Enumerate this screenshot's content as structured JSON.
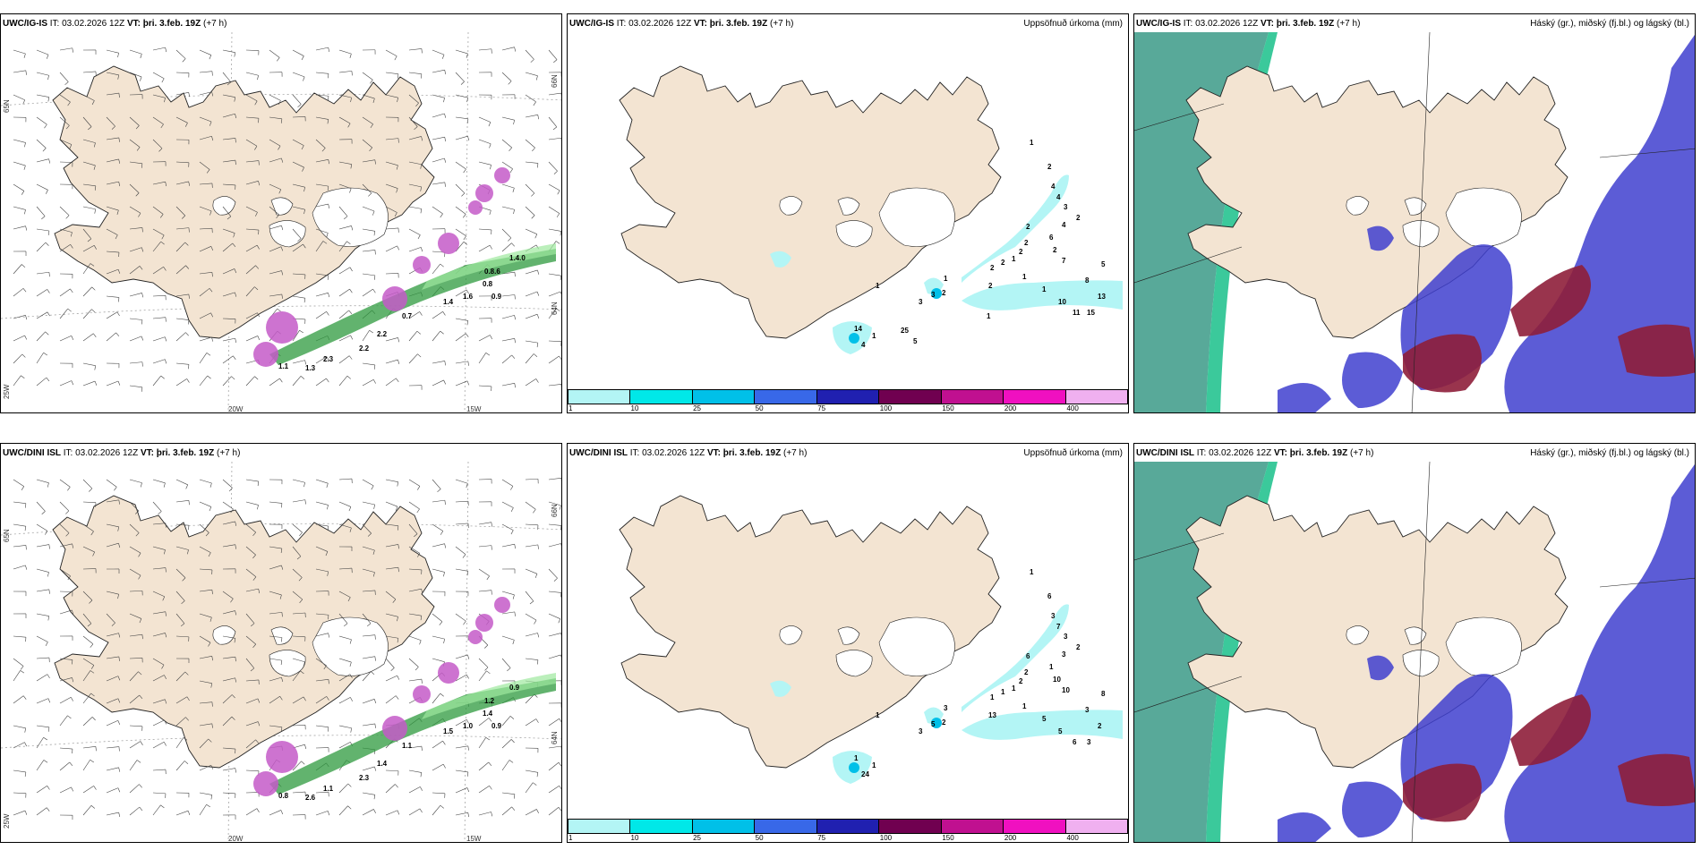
{
  "rows": [
    {
      "model": "UWC/IG-IS",
      "it_label": "IT:",
      "it": "03.02.2026 12Z",
      "vt_label": "VT:",
      "vt": "þri. 3.feb. 19Z",
      "lead": "(+7 h)",
      "wind_axes": {
        "lat_top": "66N",
        "lat_mid": "64N",
        "lat_left": "65N",
        "lat_bottom": "25W",
        "lon1": "20W",
        "lon2": "15W"
      },
      "wind_values": [
        "1.4.0",
        "0.8.6",
        "0.8",
        "1.6",
        "0.9",
        "1.4",
        "0.7",
        "2.2",
        "2.2",
        "1.3",
        "1.1",
        "2.3"
      ],
      "precip_values": [
        "1",
        "2",
        "4",
        "4",
        "3",
        "2",
        "4",
        "6",
        "2",
        "7",
        "2",
        "2",
        "2",
        "1",
        "2",
        "2",
        "1",
        "1",
        "10",
        "11",
        "15",
        "13",
        "8",
        "5",
        "2",
        "1",
        "2",
        "3",
        "3",
        "1",
        "14",
        "4",
        "1",
        "25",
        "5",
        "1"
      ],
      "cloud_title": "Háský (gr.), miðský (fj.bl.) og lágský (bl.)"
    },
    {
      "model": "UWC/DINI ISL",
      "it_label": "IT:",
      "it": "03.02.2026 12Z",
      "vt_label": "VT:",
      "vt": "þri. 3.feb. 19Z",
      "lead": "(+7 h)",
      "wind_axes": {
        "lat_top": "66N",
        "lat_mid": "64N",
        "lat_left": "65N",
        "lat_bottom": "25W",
        "lon1": "20W",
        "lon2": "15W"
      },
      "wind_values": [
        "0.9",
        "1.2",
        "1.4",
        "1.0",
        "0.9",
        "1.5",
        "1.1",
        "1.4",
        "2.3",
        "2.6",
        "0.8",
        "1.1"
      ],
      "precip_values": [
        "1",
        "6",
        "3",
        "7",
        "3",
        "2",
        "3",
        "1",
        "10",
        "10",
        "6",
        "2",
        "2",
        "1",
        "1",
        "1",
        "1",
        "5",
        "5",
        "6",
        "3",
        "2",
        "3",
        "8",
        "13",
        "3",
        "2",
        "5",
        "3",
        "1",
        "1",
        "24",
        "1"
      ],
      "cloud_title": "Háský (gr.), miðský (fj.bl.) og lágský (bl.)"
    }
  ],
  "precip_title": "Uppsöfnuð úrkoma (mm)",
  "legend": {
    "colors": [
      "#b3f5f5",
      "#00e8e8",
      "#00c0e8",
      "#3868e8",
      "#2020b0",
      "#700050",
      "#c01090",
      "#f010c0",
      "#f0b0f0"
    ],
    "ticks": [
      "1",
      "10",
      "25",
      "50",
      "75",
      "100",
      "150",
      "200",
      "400"
    ]
  }
}
